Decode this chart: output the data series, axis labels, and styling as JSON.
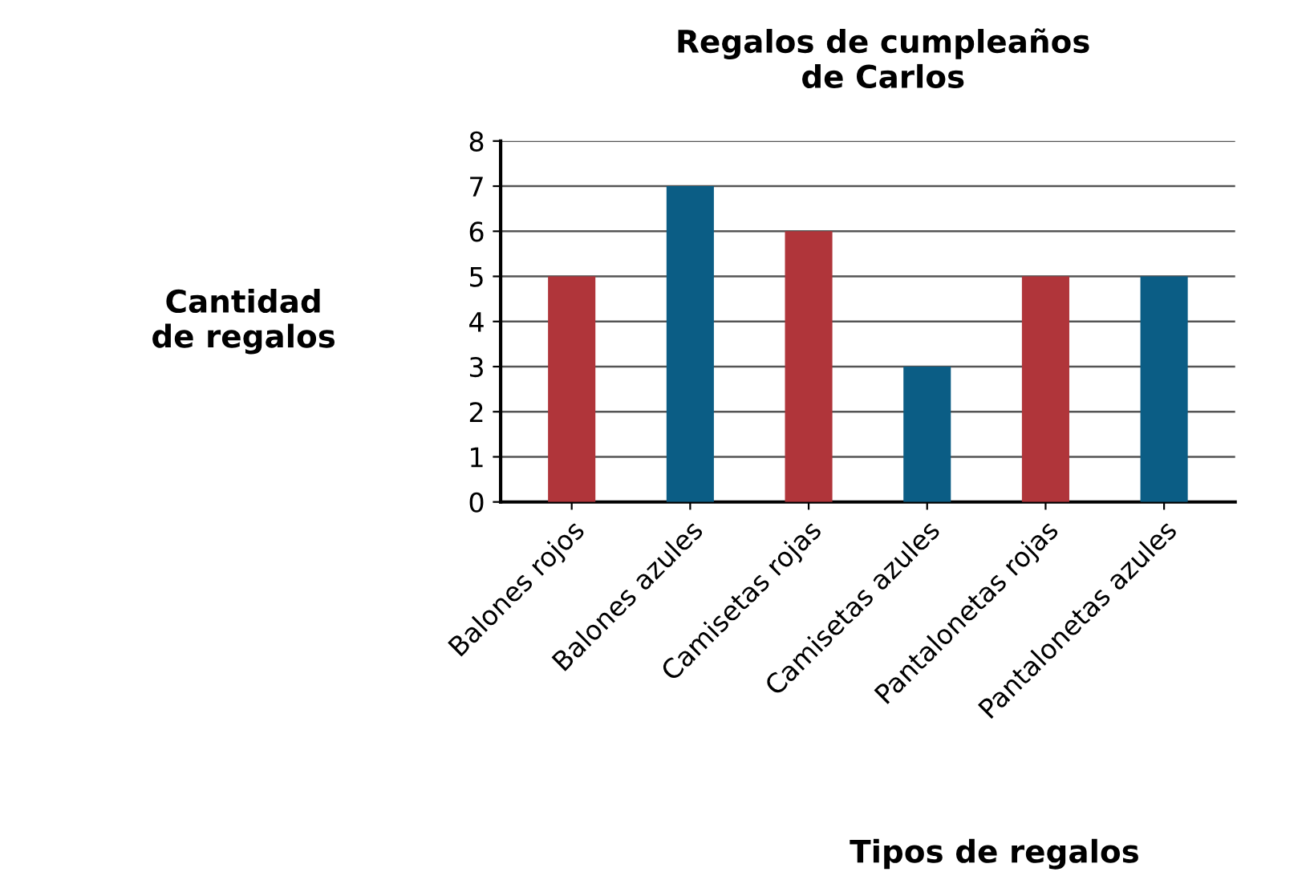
{
  "chart_data": {
    "type": "bar",
    "title": "Regalos de cumpleaños\nde Carlos",
    "xlabel": "Tipos de regalos",
    "ylabel": "Cantidad\nde regalos",
    "categories": [
      "Balones rojos",
      "Balones azules",
      "Camisetas rojas",
      "Camisetas azules",
      "Pantalonetas rojas",
      "Pantalonetas azules"
    ],
    "values": [
      5,
      7,
      6,
      3,
      5,
      5
    ],
    "colors": [
      "#b0353a",
      "#0b5d85",
      "#b0353a",
      "#0b5d85",
      "#b0353a",
      "#0b5d85"
    ],
    "ylim": [
      0,
      8
    ],
    "yticks": [
      0,
      1,
      2,
      3,
      4,
      5,
      6,
      7,
      8
    ],
    "grid": "y"
  }
}
